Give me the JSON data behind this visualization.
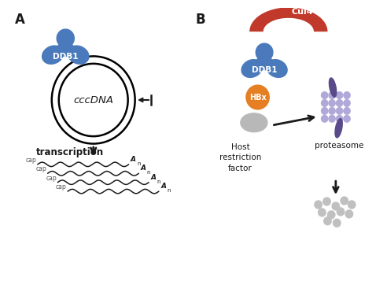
{
  "bg_color": "#ffffff",
  "label_A": "A",
  "label_B": "B",
  "ddb1_color": "#4a7abb",
  "cul4_color": "#c0392b",
  "hbx_color": "#e67e22",
  "host_factor_color": "#b8b8b8",
  "proteasome_color": "#b0a8d8",
  "proteasome_cap_color": "#5a4a8a",
  "arrow_color": "#1a1a1a",
  "text_color": "#1a1a1a",
  "wavy_color": "#1a1a1a",
  "cap_color": "#555555",
  "cccdna_text": "cccDNA",
  "transcription_text": "transcription",
  "host_text": "Host\nrestriction\nfactor",
  "proteasome_text": "proteasome",
  "ddb1_text_left": "DDB1",
  "ddb1_text_right": "DDB1",
  "hbx_text": "HBx",
  "cul4_text": "Cul4"
}
